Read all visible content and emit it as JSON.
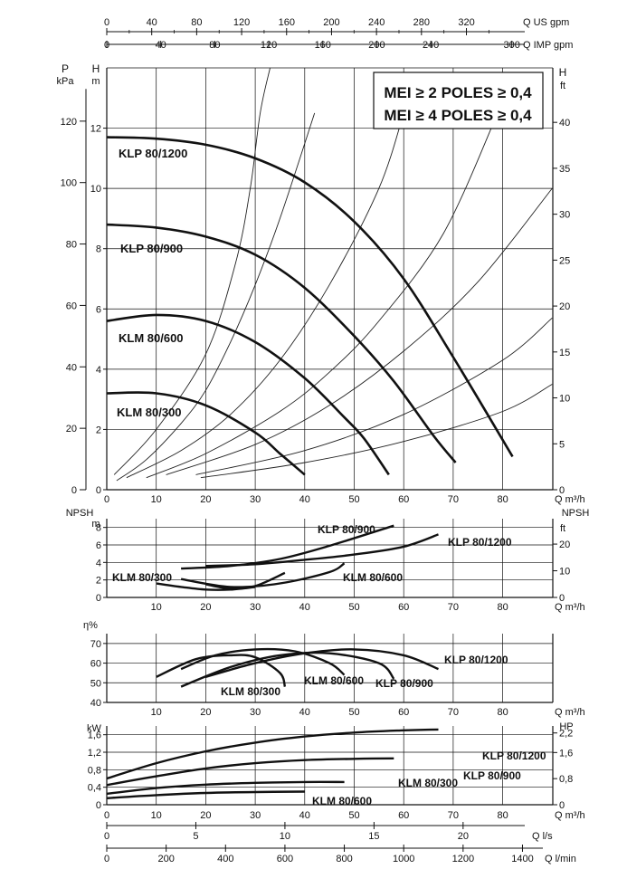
{
  "top_axes": {
    "us_label": "Q US gpm",
    "us_ticks": [
      "0",
      "40",
      "80",
      "120",
      "160",
      "200",
      "240",
      "280",
      "320"
    ],
    "imp_label": "Q IMP gpm",
    "imp_ticks": [
      "0",
      "40",
      "80",
      "120",
      "160",
      "200",
      "240",
      "300"
    ]
  },
  "mei": {
    "line1": "MEI ≥ 2 POLES ≥ 0,4",
    "line2": "MEI ≥ 4 POLES ≥ 0,4"
  },
  "chart_data": [
    {
      "type": "line",
      "panel": "head",
      "x_unit": "Q m³/h",
      "xlim": [
        0,
        90
      ],
      "x_ticks": [
        "0",
        "10",
        "20",
        "30",
        "40",
        "50",
        "60",
        "70",
        "80"
      ],
      "ylabel_left_1": "P",
      "ylabel_left_1_unit": "kPa",
      "ylabel_left_2": "H",
      "ylabel_left_2_unit": "m",
      "ylabel_right": "H",
      "ylabel_right_unit": "ft",
      "ylim": [
        0,
        14
      ],
      "y_ticks_kpa": [
        "0",
        "20",
        "40",
        "60",
        "80",
        "100",
        "120"
      ],
      "y_ticks_m": [
        "0",
        "2",
        "4",
        "6",
        "8",
        "10",
        "12"
      ],
      "y_ticks_ft": [
        "0",
        "5",
        "10",
        "15",
        "20",
        "25",
        "30",
        "35",
        "40"
      ],
      "series": [
        {
          "name": "KLP 80/1200",
          "x": [
            0,
            10,
            20,
            30,
            40,
            50,
            60,
            70,
            82
          ],
          "y": [
            11.7,
            11.65,
            11.45,
            11.0,
            10.2,
            8.9,
            7.0,
            4.4,
            1.1
          ]
        },
        {
          "name": "KLP 80/900",
          "x": [
            0,
            10,
            20,
            30,
            40,
            50,
            58,
            66,
            70.5
          ],
          "y": [
            8.8,
            8.7,
            8.4,
            7.8,
            6.7,
            5.1,
            3.6,
            1.8,
            0.9
          ]
        },
        {
          "name": "KLM 80/600",
          "x": [
            0,
            10,
            20,
            30,
            40,
            48,
            52,
            57
          ],
          "y": [
            5.6,
            5.8,
            5.6,
            4.9,
            3.7,
            2.4,
            1.7,
            0.5
          ]
        },
        {
          "name": "KLM 80/300",
          "x": [
            0,
            10,
            20,
            30,
            35,
            40
          ],
          "y": [
            3.2,
            3.2,
            2.8,
            1.9,
            1.2,
            0.5
          ]
        }
      ],
      "system_curves": [
        {
          "x": [
            2,
            8,
            15,
            20,
            25,
            30,
            35,
            42
          ],
          "y": [
            0.3,
            1.0,
            2.2,
            3.3,
            4.9,
            6.8,
            9.0,
            12.5
          ]
        },
        {
          "x": [
            4,
            15,
            25,
            35,
            45,
            55,
            60
          ],
          "y": [
            0.4,
            1.3,
            2.5,
            4.3,
            6.8,
            10.0,
            12.5
          ]
        },
        {
          "x": [
            8,
            20,
            35,
            45,
            55,
            68,
            79
          ],
          "y": [
            0.4,
            1.2,
            2.6,
            3.9,
            5.6,
            8.5,
            12.5
          ]
        },
        {
          "x": [
            12,
            30,
            45,
            60,
            75,
            90
          ],
          "y": [
            0.5,
            1.5,
            2.8,
            4.6,
            6.9,
            10.0
          ]
        },
        {
          "x": [
            18,
            40,
            60,
            80,
            90
          ],
          "y": [
            0.5,
            1.3,
            2.5,
            4.3,
            5.7
          ]
        },
        {
          "x": [
            19,
            40,
            60,
            80,
            90
          ],
          "y": [
            0.4,
            0.9,
            1.6,
            2.6,
            3.5
          ]
        },
        {
          "x": [
            1.5,
            10,
            20,
            26,
            29,
            31,
            33
          ],
          "y": [
            0.5,
            2.0,
            4.5,
            7.5,
            10.0,
            12.5,
            14.0
          ]
        }
      ]
    },
    {
      "type": "line",
      "panel": "npsh",
      "x_unit": "Q m³/h",
      "x_ticks": [
        "10",
        "20",
        "30",
        "40",
        "50",
        "60",
        "70",
        "80"
      ],
      "ylabel_left": "NPSH",
      "ylabel_left_unit": "m",
      "ylabel_right": "NPSH",
      "ylabel_right_unit": "ft",
      "ylim": [
        0,
        9
      ],
      "y_ticks_m": [
        "0",
        "2",
        "4",
        "6",
        "8"
      ],
      "y_ticks_ft": [
        "0",
        "10",
        "20"
      ],
      "series": [
        {
          "name": "KLP 80/900",
          "x": [
            15,
            25,
            35,
            45,
            58
          ],
          "y": [
            3.3,
            3.6,
            4.4,
            5.9,
            8.2
          ]
        },
        {
          "name": "KLP 80/1200",
          "x": [
            20,
            30,
            40,
            50,
            60,
            67
          ],
          "y": [
            3.6,
            3.8,
            4.3,
            4.9,
            5.8,
            7.2
          ]
        },
        {
          "name": "KLM 80/300",
          "x": [
            10,
            15,
            20,
            25,
            30
          ],
          "y": [
            1.6,
            1.2,
            0.9,
            0.9,
            1.2
          ]
        },
        {
          "name": "KLM 80/600",
          "x": [
            15,
            25,
            35,
            45,
            48
          ],
          "y": [
            2.1,
            1.2,
            1.6,
            2.9,
            3.9
          ]
        },
        {
          "name": "",
          "x": [
            20,
            25,
            30,
            36
          ],
          "y": [
            1.5,
            1.0,
            1.3,
            2.8
          ]
        }
      ]
    },
    {
      "type": "line",
      "panel": "efficiency",
      "x_unit": "Q m³/h",
      "x_ticks": [
        "10",
        "20",
        "30",
        "40",
        "50",
        "60",
        "70",
        "80"
      ],
      "ylabel_left": "η%",
      "ylim": [
        40,
        75
      ],
      "y_ticks": [
        "40",
        "50",
        "60",
        "70"
      ],
      "series": [
        {
          "name": "KLM 80/300",
          "x": [
            10,
            18,
            25,
            30,
            35,
            36
          ],
          "y": [
            53,
            62,
            64,
            63,
            55,
            48
          ]
        },
        {
          "name": "KLM 80/600",
          "x": [
            15,
            22,
            30,
            38,
            45,
            48
          ],
          "y": [
            57,
            64,
            67,
            66,
            60,
            54
          ]
        },
        {
          "name": "KLP 80/900",
          "x": [
            15,
            25,
            35,
            45,
            55,
            58
          ],
          "y": [
            48,
            58,
            64,
            65,
            60,
            52
          ]
        },
        {
          "name": "KLP 80/1200",
          "x": [
            20,
            30,
            40,
            50,
            60,
            67
          ],
          "y": [
            53,
            60,
            65,
            67,
            64,
            57
          ]
        }
      ]
    },
    {
      "type": "line",
      "panel": "power",
      "x_unit": "Q m³/h",
      "x_ticks": [
        "0",
        "10",
        "20",
        "30",
        "40",
        "50",
        "60",
        "70",
        "80"
      ],
      "ylabel_left": "kW",
      "ylabel_right": "HP",
      "ylim": [
        0,
        1.8
      ],
      "y_ticks_kw": [
        "0",
        "0,4",
        "0,8",
        "1,2",
        "1,6"
      ],
      "y_ticks_hp": [
        "0",
        "0,8",
        "1,6",
        "2,2"
      ],
      "series": [
        {
          "name": "KLP 80/1200",
          "x": [
            0,
            10,
            20,
            30,
            40,
            50,
            60,
            67
          ],
          "y": [
            0.6,
            0.95,
            1.22,
            1.42,
            1.56,
            1.65,
            1.7,
            1.72
          ]
        },
        {
          "name": "KLP 80/900",
          "x": [
            0,
            10,
            20,
            30,
            40,
            50,
            58
          ],
          "y": [
            0.45,
            0.65,
            0.83,
            0.95,
            1.02,
            1.05,
            1.06
          ]
        },
        {
          "name": "KLM 80/300",
          "x": [
            0,
            10,
            20,
            30,
            40,
            48
          ],
          "y": [
            0.25,
            0.38,
            0.46,
            0.5,
            0.52,
            0.52
          ]
        },
        {
          "name": "KLM 80/600",
          "x": [
            0,
            10,
            20,
            30,
            40
          ],
          "y": [
            0.15,
            0.22,
            0.27,
            0.29,
            0.3
          ]
        }
      ]
    }
  ],
  "bottom_axes": {
    "ls_label": "Q l/s",
    "ls_ticks": [
      "0",
      "5",
      "10",
      "15",
      "20"
    ],
    "lmin_label": "Q l/min",
    "lmin_ticks": [
      "0",
      "200",
      "400",
      "600",
      "800",
      "1000",
      "1200",
      "1400"
    ]
  }
}
